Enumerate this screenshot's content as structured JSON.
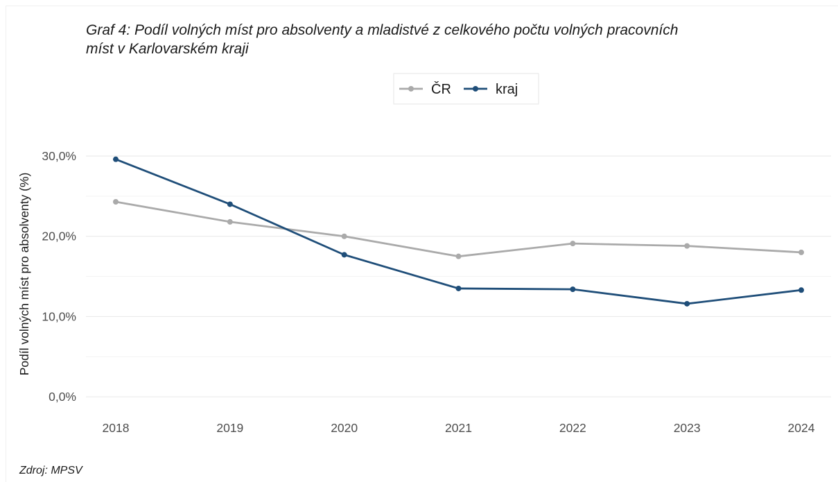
{
  "chart_data": {
    "type": "line",
    "title_line1": "Graf 4: Podíl volných míst pro absolventy a mladistvé z celkového počtu volných pracovních",
    "title_line2": "míst v Karlovarském kraji",
    "xlabel": "",
    "ylabel": "Podíl volných míst pro absolventy (%)",
    "categories": [
      "2018",
      "2019",
      "2020",
      "2021",
      "2022",
      "2023",
      "2024"
    ],
    "ylim": [
      -1.8,
      33.2
    ],
    "yticks": [
      0,
      10,
      20,
      30
    ],
    "ytick_labels": [
      "0,0%",
      "10,0%",
      "20,0%",
      "30,0%"
    ],
    "grid": true,
    "legend_position": "top",
    "series": [
      {
        "name": "ČR",
        "color": "#aaaaaa",
        "values": [
          24.3,
          21.8,
          20.0,
          17.5,
          19.1,
          18.8,
          18.0
        ]
      },
      {
        "name": "kraj",
        "color": "#1f4e79",
        "values": [
          29.6,
          24.0,
          17.7,
          13.5,
          13.4,
          11.6,
          13.3
        ]
      }
    ],
    "source": "Zdroj: MPSV"
  }
}
